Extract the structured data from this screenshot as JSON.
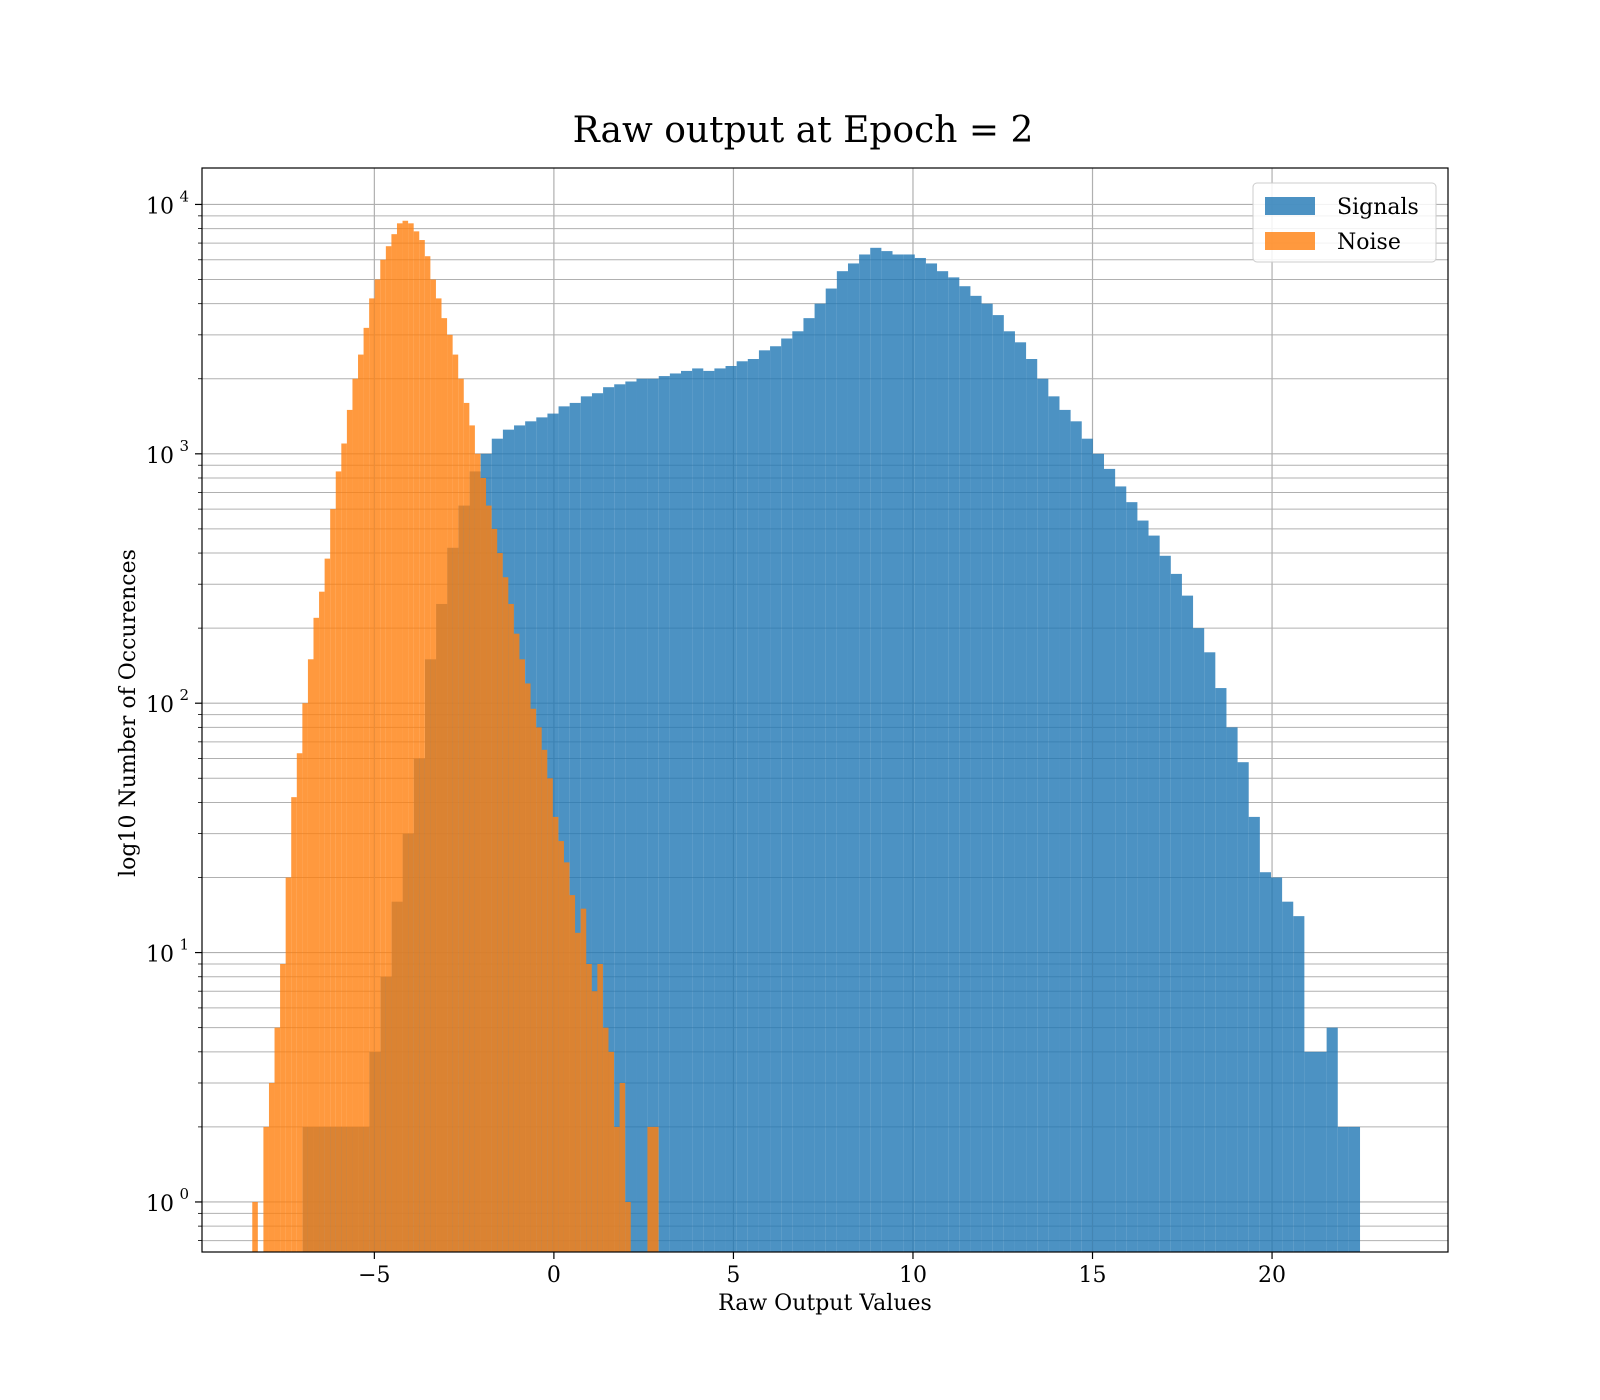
{
  "chart_data": {
    "type": "bar",
    "title": "Raw output at Epoch = 2",
    "xlabel": "Raw Output Values",
    "ylabel": "log10 Number of Occurences",
    "xlim": [
      -9.8,
      24.9
    ],
    "ylim": [
      0.63,
      14000
    ],
    "yscale": "log",
    "xticks": [
      -5,
      0,
      5,
      10,
      15,
      20
    ],
    "xtick_labels": [
      "−5",
      "0",
      "5",
      "10",
      "15",
      "20"
    ],
    "yticks": [
      1,
      10,
      100,
      1000,
      10000
    ],
    "ytick_labels": [
      {
        "base": "10",
        "exp": "0"
      },
      {
        "base": "10",
        "exp": "1"
      },
      {
        "base": "10",
        "exp": "2"
      },
      {
        "base": "10",
        "exp": "3"
      },
      {
        "base": "10",
        "exp": "4"
      }
    ],
    "grid": true,
    "legend": "top-right",
    "series": [
      {
        "name": "Signals",
        "color": "#1f77b4",
        "opacity": 0.8,
        "x_start": -7.0,
        "bin_width": 0.31,
        "values": [
          2,
          2,
          2,
          2,
          2,
          2,
          4,
          8,
          16,
          30,
          60,
          150,
          250,
          420,
          620,
          850,
          1000,
          1150,
          1250,
          1300,
          1350,
          1400,
          1450,
          1550,
          1600,
          1700,
          1750,
          1850,
          1900,
          1950,
          2000,
          2000,
          2050,
          2100,
          2150,
          2200,
          2150,
          2200,
          2250,
          2350,
          2400,
          2600,
          2700,
          2900,
          3100,
          3500,
          4000,
          4600,
          5400,
          5800,
          6300,
          6700,
          6500,
          6300,
          6300,
          6100,
          5800,
          5400,
          5100,
          4700,
          4300,
          4000,
          3600,
          3100,
          2800,
          2400,
          2000,
          1700,
          1500,
          1350,
          1150,
          1000,
          870,
          740,
          640,
          540,
          470,
          390,
          330,
          270,
          200,
          160,
          115,
          80,
          58,
          35,
          21,
          20,
          16,
          14,
          4,
          4,
          5,
          2,
          2
        ]
      },
      {
        "name": "Noise",
        "color": "#ff7f0e",
        "opacity": 0.8,
        "x_start": -8.4,
        "bin_width": 0.155,
        "values": [
          1,
          0,
          2,
          3,
          5,
          9,
          20,
          42,
          63,
          100,
          150,
          220,
          280,
          380,
          600,
          850,
          1100,
          1500,
          2000,
          2500,
          3200,
          4200,
          5000,
          6000,
          6800,
          7600,
          8400,
          8600,
          8400,
          7800,
          7200,
          6200,
          5000,
          4200,
          3500,
          3000,
          2500,
          2000,
          1600,
          1300,
          1000,
          800,
          620,
          500,
          400,
          320,
          250,
          190,
          150,
          120,
          95,
          80,
          65,
          50,
          35,
          28,
          23,
          17,
          12,
          15,
          9,
          7,
          9,
          5,
          4,
          2,
          3,
          1,
          0,
          0,
          0,
          2,
          2
        ]
      }
    ]
  }
}
